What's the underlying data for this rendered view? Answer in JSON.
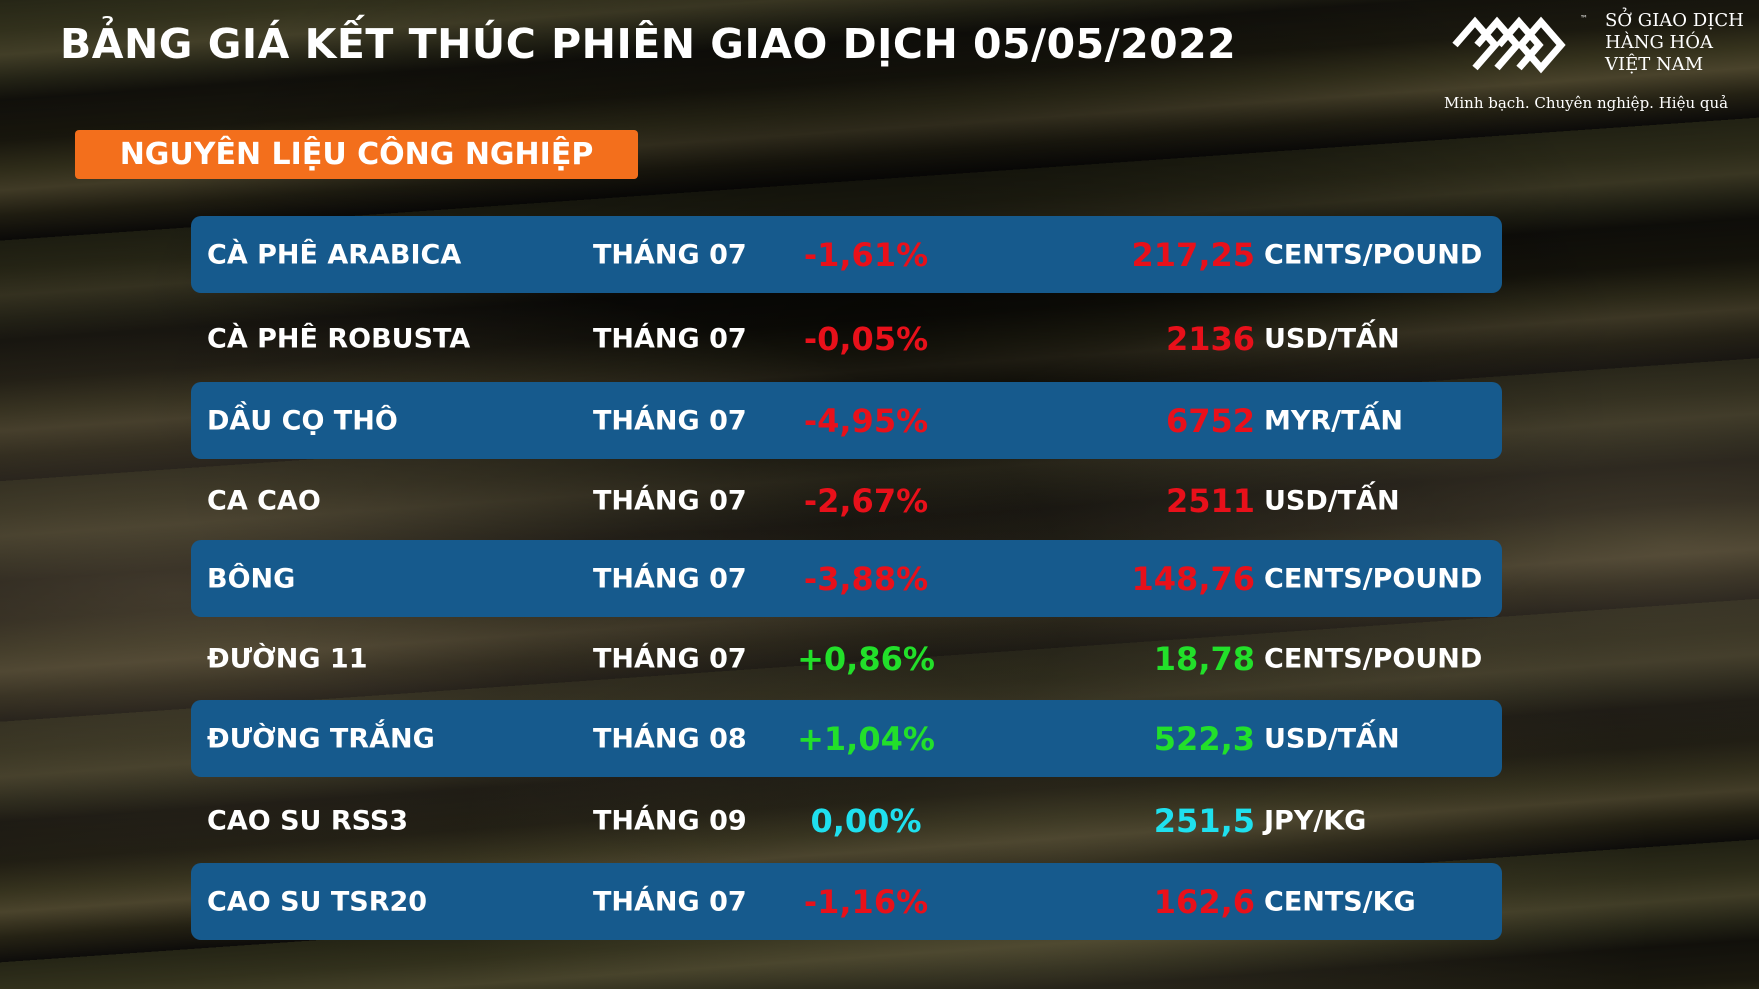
{
  "title": "BẢNG GIÁ KẾT THÚC PHIÊN GIAO DỊCH 05/05/2022",
  "logo": {
    "tm": "™",
    "line1": "SỞ GIAO DỊCH",
    "line2": "HÀNG HÓA",
    "line3": "VIỆT NAM",
    "slogan": "Minh bạch. Chuyên nghiệp. Hiệu quả"
  },
  "category": "NGUYÊN LIỆU CÔNG NGHIỆP",
  "colors": {
    "red": "#e8101a",
    "green": "#22e02a",
    "cyan": "#1fe0ee",
    "highlight": "#165a8d",
    "category_bg": "#f36f1c"
  },
  "rows": [
    {
      "name": "CÀ PHÊ ARABICA",
      "month": "THÁNG 07",
      "change": "-1,61%",
      "price": "217,25",
      "unit": "CENTS/POUND",
      "trend": "red"
    },
    {
      "name": "CÀ PHÊ ROBUSTA",
      "month": "THÁNG 07",
      "change": "-0,05%",
      "price": "2136",
      "unit": "USD/TẤN",
      "trend": "red"
    },
    {
      "name": "DẦU CỌ THÔ",
      "month": "THÁNG 07",
      "change": "-4,95%",
      "price": "6752",
      "unit": "MYR/TẤN",
      "trend": "red"
    },
    {
      "name": "CA CAO",
      "month": "THÁNG 07",
      "change": "-2,67%",
      "price": "2511",
      "unit": "USD/TẤN",
      "trend": "red"
    },
    {
      "name": "BÔNG",
      "month": "THÁNG 07",
      "change": "-3,88%",
      "price": "148,76",
      "unit": "CENTS/POUND",
      "trend": "red"
    },
    {
      "name": "ĐƯỜNG 11",
      "month": "THÁNG 07",
      "change": "+0,86%",
      "price": "18,78",
      "unit": "CENTS/POUND",
      "trend": "green"
    },
    {
      "name": "ĐƯỜNG TRẮNG",
      "month": "THÁNG 08",
      "change": "+1,04%",
      "price": "522,3",
      "unit": "USD/TẤN",
      "trend": "green"
    },
    {
      "name": "CAO SU RSS3",
      "month": "THÁNG 09",
      "change": "0,00%",
      "price": "251,5",
      "unit": "JPY/KG",
      "trend": "cyan"
    },
    {
      "name": "CAO SU TSR20",
      "month": "THÁNG 07",
      "change": "-1,16%",
      "price": "162,6",
      "unit": "CENTS/KG",
      "trend": "red"
    }
  ]
}
